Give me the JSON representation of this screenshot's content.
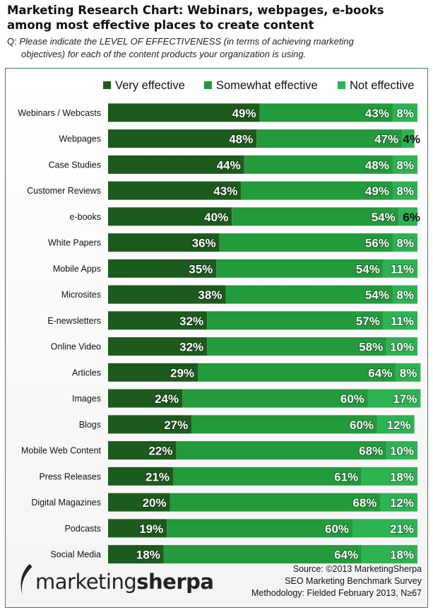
{
  "header": {
    "title_line1": "Marketing Research Chart: Webinars, webpages, e-books",
    "title_line2": "among most effective places to create content",
    "question_prefix": "Q:",
    "question_line1": "Please indicate the LEVEL OF EFFECTIVENESS (in terms of achieving marketing",
    "question_line2": "objectives) for each of the content products your organization is using."
  },
  "footer": {
    "logo_light": "marketing",
    "logo_bold": "sherpa",
    "source_line1": "Source: ©2013 MarketingSherpa",
    "source_line2": "SEO Marketing Benchmark Survey",
    "source_line3": "Methodology: Fielded February 2013, N≥67"
  },
  "chart_data": {
    "type": "bar",
    "orientation": "horizontal",
    "stacked": true,
    "unit": "%",
    "legend_position": "top",
    "categories": [
      "Webinars / Webcasts",
      "Webpages",
      "Case Studies",
      "Customer Reviews",
      "e-books",
      "White Papers",
      "Mobile Apps",
      "Microsites",
      "E-newsletters",
      "Online Video",
      "Articles",
      "Images",
      "Blogs",
      "Mobile Web Content",
      "Press Releases",
      "Digital Magazines",
      "Podcasts",
      "Social Media"
    ],
    "series": [
      {
        "name": "Very effective",
        "color": "#1d5a1d",
        "values": [
          49,
          48,
          44,
          43,
          40,
          36,
          35,
          38,
          32,
          32,
          29,
          24,
          27,
          22,
          21,
          20,
          19,
          18
        ]
      },
      {
        "name": "Somewhat effective",
        "color": "#239a3b",
        "values": [
          43,
          47,
          48,
          49,
          54,
          56,
          54,
          54,
          57,
          58,
          64,
          60,
          60,
          68,
          61,
          68,
          60,
          64
        ]
      },
      {
        "name": "Not effective",
        "color": "#2db352",
        "values": [
          8,
          4,
          8,
          8,
          6,
          8,
          11,
          8,
          11,
          10,
          8,
          17,
          12,
          10,
          18,
          12,
          21,
          18
        ]
      }
    ]
  }
}
